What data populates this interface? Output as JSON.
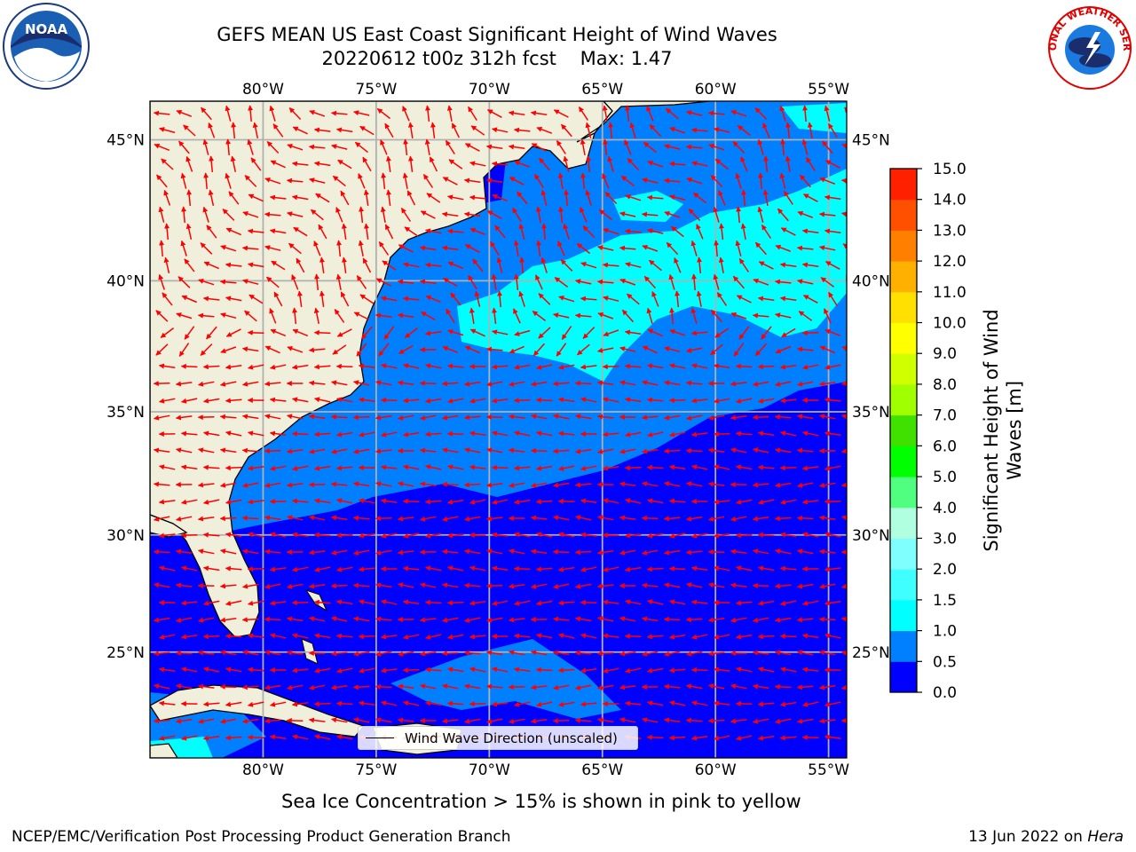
{
  "header": {
    "title_line1": "GEFS MEAN US East Coast Significant Height of Wind Waves",
    "title_line2": "20220612 t00z 312h fcst    Max: 1.47"
  },
  "logos": {
    "left": {
      "text": "NOAA",
      "icon": "noaa-logo-icon"
    },
    "right": {
      "text": "NATIONAL WEATHER SERVICE",
      "icon": "nws-logo-icon"
    }
  },
  "map": {
    "lon_ticks": [
      "80°W",
      "75°W",
      "70°W",
      "65°W",
      "60°W",
      "55°W"
    ],
    "lat_ticks": [
      "45°N",
      "40°N",
      "35°N",
      "30°N",
      "25°N"
    ],
    "lon_values": [
      -80,
      -75,
      -70,
      -65,
      -60,
      -55
    ],
    "lat_values": [
      45,
      40,
      35,
      30,
      25
    ],
    "extent": {
      "lon": [
        -85,
        -54.2
      ],
      "lat": [
        20.3,
        46.3
      ]
    },
    "legend_label": "Wind Wave Direction (unscaled)",
    "colors": {
      "land": "#efefdc",
      "grid": "#b0b0b0",
      "arrows": "#ff0000",
      "coast": "#000000"
    }
  },
  "colorbar": {
    "title_line1": "Significant Height of Wind",
    "title_line2": "Waves [m]",
    "levels": [
      "0.0",
      "0.5",
      "1.0",
      "1.5",
      "2.0",
      "3.0",
      "4.0",
      "5.0",
      "6.0",
      "7.0",
      "8.0",
      "9.0",
      "10.0",
      "11.0",
      "12.0",
      "13.0",
      "14.0",
      "15.0"
    ],
    "colors": [
      "#0000ff",
      "#0080ff",
      "#00ffff",
      "#40ffff",
      "#80ffff",
      "#b0ffe0",
      "#50ff80",
      "#00ff00",
      "#40e000",
      "#a0ff00",
      "#d0ff00",
      "#ffff00",
      "#ffe000",
      "#ffb000",
      "#ff8000",
      "#ff5000",
      "#ff2000",
      "#ff0000"
    ]
  },
  "notes": {
    "sea_ice": "Sea Ice Concentration > 15% is shown in pink to yellow"
  },
  "footer": {
    "left": "NCEP/EMC/Verification Post Processing Product Generation Branch",
    "date": "13 Jun 2022 on",
    "host": "Hera"
  }
}
